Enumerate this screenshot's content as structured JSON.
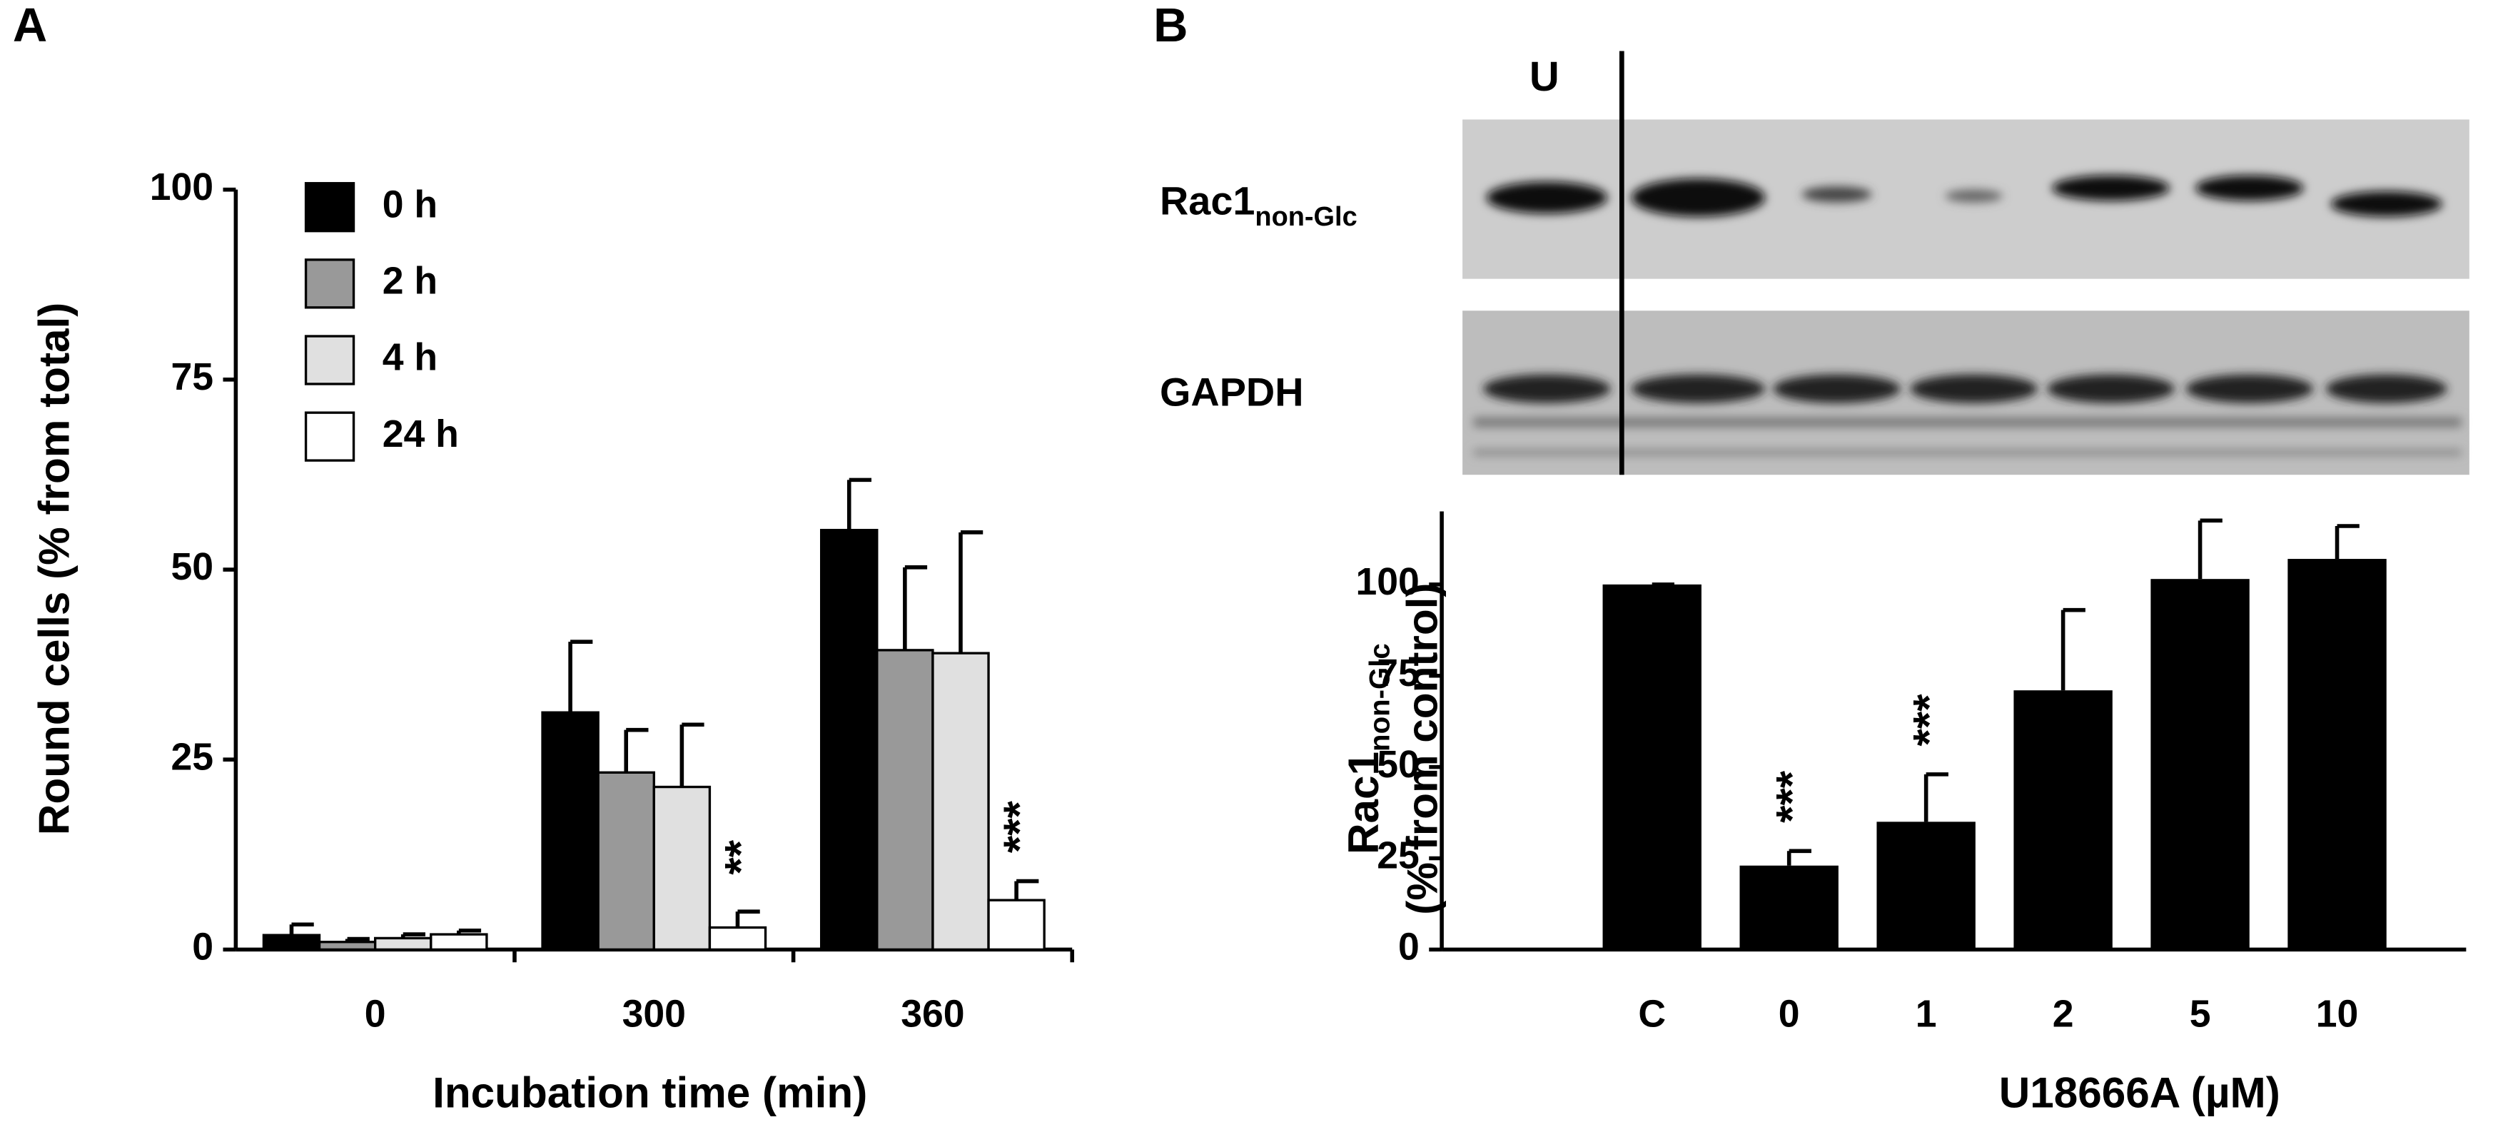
{
  "chart_data": [
    {
      "type": "grouped_bar",
      "panel": "A",
      "xlabel": "Incubation time (min)",
      "ylabel": "Round cells (% from total)",
      "categories": [
        "0",
        "300",
        "360"
      ],
      "ylim": [
        0,
        100
      ],
      "yticks": [
        0,
        25,
        50,
        75,
        100
      ],
      "series": [
        {
          "name": "0 h",
          "color": "#000000",
          "values": [
            1.9,
            31.2,
            55.2
          ],
          "errors": [
            1.4,
            9.3,
            6.6
          ]
        },
        {
          "name": "2 h",
          "color": "#999999",
          "values": [
            1,
            23.3,
            39.4
          ],
          "errors": [
            0.4,
            5.6,
            10.9
          ]
        },
        {
          "name": "4 h",
          "color": "#e0e0e0",
          "values": [
            1.5,
            21.4,
            39
          ],
          "errors": [
            0.5,
            8.2,
            15.9
          ]
        },
        {
          "name": "24 h",
          "color": "#ffffff",
          "values": [
            2,
            2.9,
            6.5
          ],
          "errors": [
            0.5,
            2.1,
            2.5
          ],
          "significance": [
            null,
            "**",
            "***"
          ]
        }
      ]
    },
    {
      "type": "bar",
      "panel": "B",
      "xlabel": "U18666A (µM)",
      "ylabel": {
        "main": "Rac1",
        "subscript": "non-Glc",
        "second_line": "(% from control)"
      },
      "categories": [
        "C",
        "0",
        "1",
        "2",
        "5",
        "10"
      ],
      "ylim": [
        0,
        120
      ],
      "yticks": [
        0,
        25,
        50,
        75,
        100
      ],
      "color": "#000000",
      "values": [
        100,
        23,
        35,
        71,
        101.5,
        107
      ],
      "errors": [
        0,
        4,
        13,
        22,
        16,
        9
      ],
      "significance": [
        null,
        "***",
        "***",
        null,
        null,
        null
      ]
    }
  ],
  "blot": {
    "lane_label": "U",
    "rows": [
      {
        "label": "Rac1",
        "subscript": "non-Glc"
      },
      {
        "label": "GAPDH"
      }
    ]
  }
}
